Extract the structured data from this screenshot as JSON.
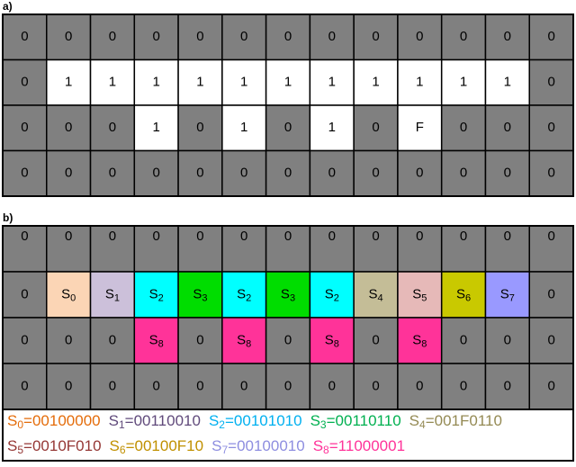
{
  "panel_a": {
    "label": "a)",
    "rows": [
      [
        "0",
        "0",
        "0",
        "0",
        "0",
        "0",
        "0",
        "0",
        "0",
        "0",
        "0",
        "0",
        "0"
      ],
      [
        "0",
        "1",
        "1",
        "1",
        "1",
        "1",
        "1",
        "1",
        "1",
        "1",
        "1",
        "1",
        "0"
      ],
      [
        "0",
        "0",
        "0",
        "1",
        "0",
        "1",
        "0",
        "1",
        "0",
        "F",
        "0",
        "0",
        "0"
      ],
      [
        "0",
        "0",
        "0",
        "0",
        "0",
        "0",
        "0",
        "0",
        "0",
        "0",
        "0",
        "0",
        "0"
      ]
    ]
  },
  "panel_b": {
    "label": "b)",
    "rows": [
      [
        "0",
        "0",
        "0",
        "0",
        "0",
        "0",
        "0",
        "0",
        "0",
        "0",
        "0",
        "0",
        "0"
      ],
      [
        "0",
        {
          "name": "S",
          "sub": "0"
        },
        {
          "name": "S",
          "sub": "1"
        },
        {
          "name": "S",
          "sub": "2"
        },
        {
          "name": "S",
          "sub": "3"
        },
        {
          "name": "S",
          "sub": "2"
        },
        {
          "name": "S",
          "sub": "3"
        },
        {
          "name": "S",
          "sub": "2"
        },
        {
          "name": "S",
          "sub": "4"
        },
        {
          "name": "S",
          "sub": "5"
        },
        {
          "name": "S",
          "sub": "6"
        },
        {
          "name": "S",
          "sub": "7"
        },
        "0"
      ],
      [
        "0",
        "0",
        "0",
        {
          "name": "S",
          "sub": "8"
        },
        "0",
        {
          "name": "S",
          "sub": "8"
        },
        "0",
        {
          "name": "S",
          "sub": "8"
        },
        "0",
        {
          "name": "S",
          "sub": "8"
        },
        "0",
        "0",
        "0"
      ],
      [
        "0",
        "0",
        "0",
        "0",
        "0",
        "0",
        "0",
        "0",
        "0",
        "0",
        "0",
        "0",
        "0"
      ]
    ]
  },
  "legend": {
    "equals": "=",
    "states": [
      {
        "name": "S",
        "sub": "0",
        "code": "00100000",
        "text_color": "#e46c0a",
        "fill": "#fbd5b5"
      },
      {
        "name": "S",
        "sub": "1",
        "code": "00110010",
        "text_color": "#604a7b",
        "fill": "#ccc0da"
      },
      {
        "name": "S",
        "sub": "2",
        "code": "00101010",
        "text_color": "#00b0f0",
        "fill": "#00ffff"
      },
      {
        "name": "S",
        "sub": "3",
        "code": "00110110",
        "text_color": "#00b050",
        "fill": "#00dd00"
      },
      {
        "name": "S",
        "sub": "4",
        "code": "001F0110",
        "text_color": "#948a54",
        "fill": "#c4bd97"
      },
      {
        "name": "S",
        "sub": "5",
        "code": "0010F010",
        "text_color": "#953735",
        "fill": "#e6b9b8"
      },
      {
        "name": "S",
        "sub": "6",
        "code": "00100F10",
        "text_color": "#c09000",
        "fill": "#c9c900"
      },
      {
        "name": "S",
        "sub": "7",
        "code": "00100010",
        "text_color": "#8e8ee0",
        "fill": "#9999ff"
      },
      {
        "name": "S",
        "sub": "8",
        "code": "11000001",
        "text_color": "#ff3399",
        "fill": "#ff3399"
      }
    ]
  }
}
